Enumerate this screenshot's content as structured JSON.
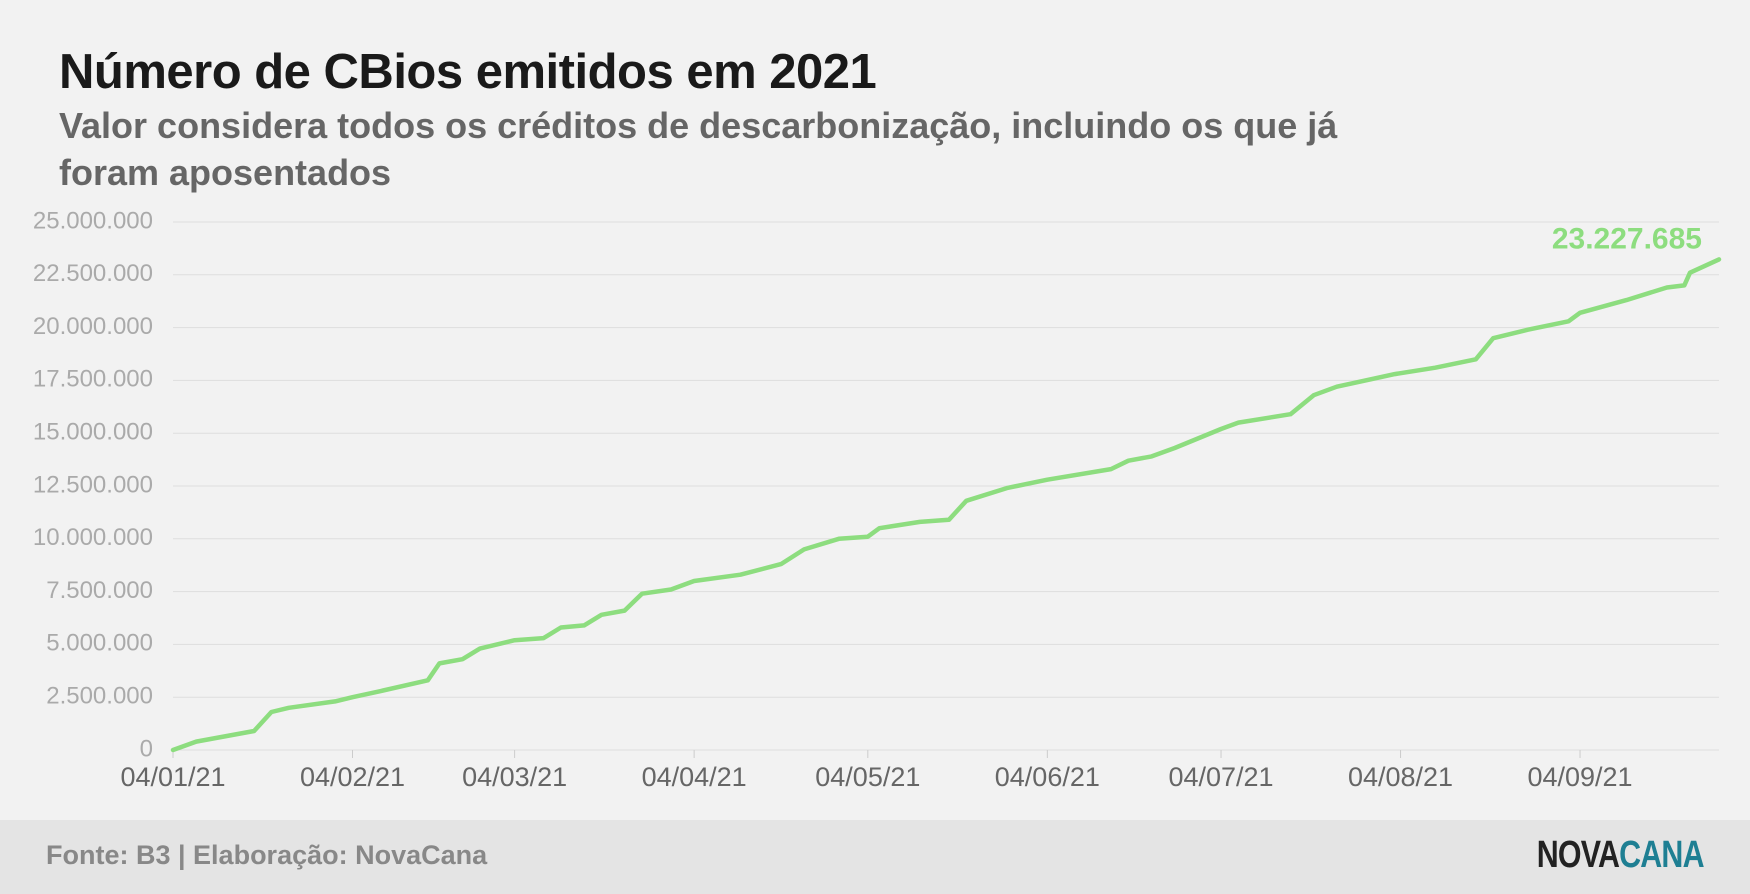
{
  "chart_data": {
    "type": "line",
    "title": "Número de CBios emitidos em 2021",
    "subtitle": "Valor considera todos os créditos de descarbonização, incluindo os que já foram aposentados",
    "x": [
      "2021-01-04",
      "2021-01-08",
      "2021-01-18",
      "2021-01-21",
      "2021-01-24",
      "2021-02-01",
      "2021-02-04",
      "2021-02-09",
      "2021-02-17",
      "2021-02-19",
      "2021-02-23",
      "2021-02-26",
      "2021-03-04",
      "2021-03-09",
      "2021-03-12",
      "2021-03-16",
      "2021-03-19",
      "2021-03-23",
      "2021-03-26",
      "2021-03-31",
      "2021-04-04",
      "2021-04-12",
      "2021-04-19",
      "2021-04-23",
      "2021-04-29",
      "2021-05-04",
      "2021-05-06",
      "2021-05-13",
      "2021-05-18",
      "2021-05-21",
      "2021-05-28",
      "2021-06-04",
      "2021-06-15",
      "2021-06-18",
      "2021-06-22",
      "2021-06-26",
      "2021-07-04",
      "2021-07-07",
      "2021-07-16",
      "2021-07-20",
      "2021-07-24",
      "2021-08-03",
      "2021-08-10",
      "2021-08-17",
      "2021-08-20",
      "2021-08-26",
      "2021-09-02",
      "2021-09-04",
      "2021-09-12",
      "2021-09-19",
      "2021-09-22",
      "2021-09-23",
      "2021-09-28"
    ],
    "values": [
      0,
      400000,
      900000,
      1800000,
      2000000,
      2300000,
      2500000,
      2800000,
      3300000,
      4100000,
      4300000,
      4800000,
      5200000,
      5300000,
      5800000,
      5900000,
      6400000,
      6600000,
      7400000,
      7600000,
      8000000,
      8300000,
      8800000,
      9500000,
      10000000,
      10100000,
      10500000,
      10800000,
      10900000,
      11800000,
      12400000,
      12800000,
      13300000,
      13700000,
      13900000,
      14300000,
      15200000,
      15500000,
      15900000,
      16800000,
      17200000,
      17800000,
      18100000,
      18500000,
      19500000,
      19900000,
      20300000,
      20700000,
      21300000,
      21900000,
      22000000,
      22600000,
      23227685
    ],
    "value_labels": [
      null,
      null,
      null,
      null,
      null,
      null,
      null,
      null,
      null,
      null,
      null,
      null,
      null,
      null,
      null,
      null,
      null,
      null,
      null,
      null,
      null,
      null,
      null,
      null,
      null,
      null,
      null,
      null,
      null,
      null,
      null,
      null,
      null,
      null,
      null,
      null,
      null,
      null,
      null,
      null,
      null,
      null,
      null,
      null,
      null,
      null,
      null,
      null,
      null,
      null,
      null,
      null,
      "23.227.685"
    ],
    "color": "#8ddd7f",
    "xlim": [
      "2021-01-04",
      "2021-09-28"
    ],
    "xticks": [
      {
        "value": "2021-01-04",
        "label": "04/01/21"
      },
      {
        "value": "2021-02-04",
        "label": "04/02/21"
      },
      {
        "value": "2021-03-04",
        "label": "04/03/21"
      },
      {
        "value": "2021-04-04",
        "label": "04/04/21"
      },
      {
        "value": "2021-05-04",
        "label": "04/05/21"
      },
      {
        "value": "2021-06-04",
        "label": "04/06/21"
      },
      {
        "value": "2021-07-04",
        "label": "04/07/21"
      },
      {
        "value": "2021-08-04",
        "label": "04/08/21"
      },
      {
        "value": "2021-09-04",
        "label": "04/09/21"
      }
    ],
    "ylim": [
      0,
      25000000
    ],
    "yticks": [
      0,
      {
        "value": 2500000,
        "label": "2.500.000"
      },
      {
        "value": 5000000,
        "label": "5.000.000"
      },
      {
        "value": 7500000,
        "label": "7.500.000"
      },
      {
        "value": 10000000,
        "label": "10.000.000"
      },
      {
        "value": 12500000,
        "label": "12.500.000"
      },
      {
        "value": 15000000,
        "label": "15.000.000"
      },
      {
        "value": 17500000,
        "label": "17.500.000"
      },
      {
        "value": 20000000,
        "label": "20.000.000"
      },
      {
        "value": 22500000,
        "label": "22.500.000"
      },
      {
        "value": 25000000,
        "label": "25.000.000"
      }
    ],
    "grid": true
  },
  "footer": {
    "source": "Fonte: B3 | Elaboração: NovaCana",
    "logo": [
      "NOVA",
      "CANA"
    ]
  }
}
